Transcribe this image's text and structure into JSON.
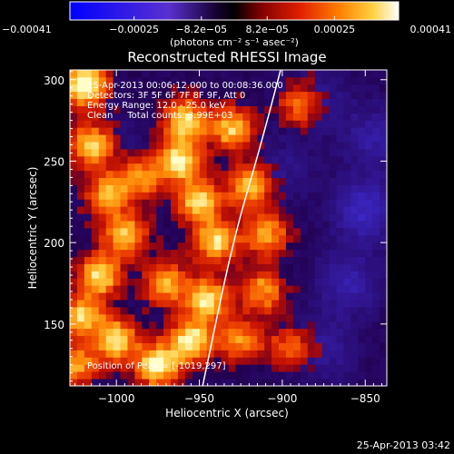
{
  "chart_data": {
    "type": "heatmap",
    "title": "Reconstructed RHESSI Image",
    "xlabel": "Heliocentric X (arcsec)",
    "ylabel": "Heliocentric Y (arcsec)",
    "xlim": [
      -1028,
      -837
    ],
    "ylim": [
      112,
      306
    ],
    "x_ticks": [
      -1000,
      -950,
      -900,
      -850
    ],
    "x_tick_labels": [
      "−1000",
      "−950",
      "−900",
      "−850"
    ],
    "y_ticks": [
      150,
      200,
      250,
      300
    ],
    "y_tick_labels": [
      "150",
      "200",
      "250",
      "300"
    ],
    "colorbar": {
      "range": [
        -0.00041,
        0.00041
      ],
      "ticks": [
        -0.00041,
        -0.00025,
        -8.2e-05,
        8.2e-05,
        0.00025,
        0.00041
      ],
      "tick_labels": [
        "−0.00041",
        "−0.00025",
        "−8.2e−05",
        "8.2e−05",
        "0.00025",
        "0.00041"
      ],
      "unit_label": "(photons cm⁻² s⁻¹ asec⁻²)",
      "colormap": [
        "#0000ff",
        "#6a3dd8",
        "#1a0030",
        "#000000",
        "#8a0000",
        "#e02000",
        "#ff8000",
        "#ffd040",
        "#ffffff"
      ]
    },
    "annotations": [
      "25-Apr-2013 00:06:12.000 to 00:08:36.000",
      "Detectors: 3F 5F 6F 7F 8F 9F, Att 0",
      "Energy Range: 12.0 - 25.0 keV",
      "Clean     Total counts: 3.99E+03"
    ],
    "peak_label": "Position of Peak = [-1019,297]",
    "peak_position": [
      -1019,
      297
    ],
    "limb": [
      [
        -948,
        112
      ],
      [
        -930,
        200
      ],
      [
        -914,
        256
      ],
      [
        -901,
        306
      ]
    ],
    "blobs": [
      {
        "x": -1019,
        "y": 297,
        "v": 1.0
      },
      {
        "x": -1015,
        "y": 260,
        "v": 0.75
      },
      {
        "x": -1005,
        "y": 230,
        "v": 0.65
      },
      {
        "x": -995,
        "y": 205,
        "v": 0.7
      },
      {
        "x": -1010,
        "y": 180,
        "v": 0.75
      },
      {
        "x": -1020,
        "y": 155,
        "v": 0.7
      },
      {
        "x": -1000,
        "y": 140,
        "v": 0.8
      },
      {
        "x": -975,
        "y": 125,
        "v": 0.9
      },
      {
        "x": -955,
        "y": 140,
        "v": 0.85
      },
      {
        "x": -945,
        "y": 165,
        "v": 0.8
      },
      {
        "x": -940,
        "y": 200,
        "v": 0.75
      },
      {
        "x": -950,
        "y": 225,
        "v": 0.8
      },
      {
        "x": -962,
        "y": 250,
        "v": 0.85
      },
      {
        "x": -958,
        "y": 275,
        "v": 0.8
      },
      {
        "x": -930,
        "y": 270,
        "v": 0.7
      },
      {
        "x": -920,
        "y": 235,
        "v": 0.7
      },
      {
        "x": -910,
        "y": 205,
        "v": 0.65
      },
      {
        "x": -912,
        "y": 170,
        "v": 0.6
      },
      {
        "x": -925,
        "y": 140,
        "v": 0.55
      },
      {
        "x": -970,
        "y": 175,
        "v": 0.65
      },
      {
        "x": -985,
        "y": 240,
        "v": 0.55
      },
      {
        "x": -1024,
        "y": 125,
        "v": 0.6
      },
      {
        "x": -890,
        "y": 285,
        "v": 0.45
      },
      {
        "x": -895,
        "y": 135,
        "v": 0.45
      }
    ],
    "dark_regions": [
      {
        "x": -850,
        "y": 220,
        "v": 1.0
      },
      {
        "x": -860,
        "y": 175,
        "v": 0.8
      },
      {
        "x": -845,
        "y": 265,
        "v": 0.7
      },
      {
        "x": -875,
        "y": 135,
        "v": 0.6
      },
      {
        "x": -880,
        "y": 290,
        "v": 0.5
      },
      {
        "x": -1005,
        "y": 260,
        "v": 0.35
      },
      {
        "x": -900,
        "y": 245,
        "v": 0.45
      }
    ]
  },
  "footer": {
    "timestamp": "25-Apr-2013 03:42"
  }
}
